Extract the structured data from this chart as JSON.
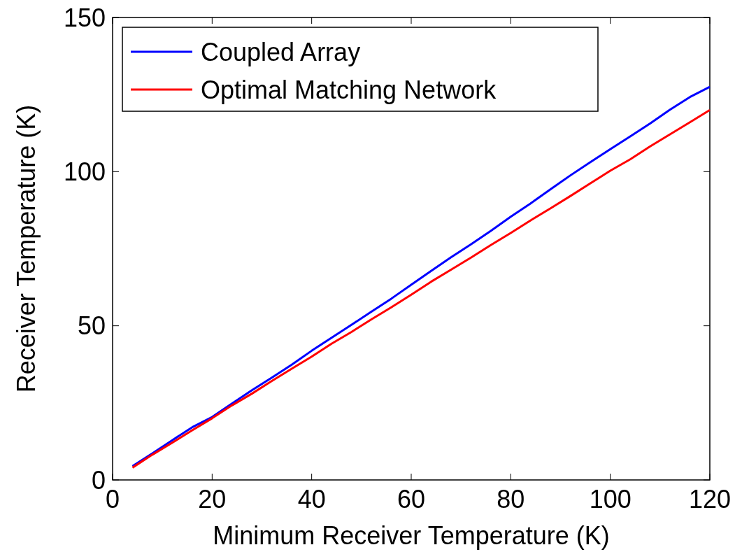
{
  "chart_data": {
    "type": "line",
    "xlabel": "Minimum Receiver Temperature (K)",
    "ylabel": "Receiver Temperature (K)",
    "x": [
      4,
      8,
      12,
      16,
      20,
      24,
      28,
      32,
      36,
      40,
      44,
      48,
      52,
      56,
      60,
      64,
      68,
      72,
      76,
      80,
      84,
      88,
      92,
      96,
      100,
      104,
      108,
      112,
      116,
      120
    ],
    "series": [
      {
        "name": "Coupled Array",
        "color": "#0000ff",
        "values": [
          4.5,
          8.6,
          12.9,
          17.1,
          20.4,
          24.8,
          29.1,
          33.2,
          37.4,
          41.9,
          46.1,
          50.3,
          54.6,
          58.8,
          63.3,
          67.8,
          72.2,
          76.4,
          80.8,
          85.4,
          89.7,
          94.3,
          98.8,
          103.1,
          107.3,
          111.4,
          115.6,
          120.1,
          124.2,
          127.5
        ]
      },
      {
        "name": "Optimal Matching Network",
        "color": "#ff0000",
        "values": [
          4,
          8.2,
          12.1,
          16.1,
          20.0,
          24.2,
          28.0,
          32.1,
          36.1,
          40.0,
          44.2,
          48.0,
          52.1,
          56.0,
          60.1,
          64.3,
          68.2,
          72.1,
          76.2,
          80.1,
          84.2,
          88.1,
          92.1,
          96.2,
          100.3,
          104.0,
          108.2,
          112.1,
          116.0,
          120.0
        ]
      }
    ],
    "xlim": [
      0,
      120
    ],
    "xticks": [
      0,
      20,
      40,
      60,
      80,
      100,
      120
    ],
    "ylim": [
      0,
      150
    ],
    "yticks": [
      0,
      50,
      100,
      150
    ],
    "grid": false,
    "legend": "top left",
    "marker": "none",
    "line_style": "solid"
  }
}
